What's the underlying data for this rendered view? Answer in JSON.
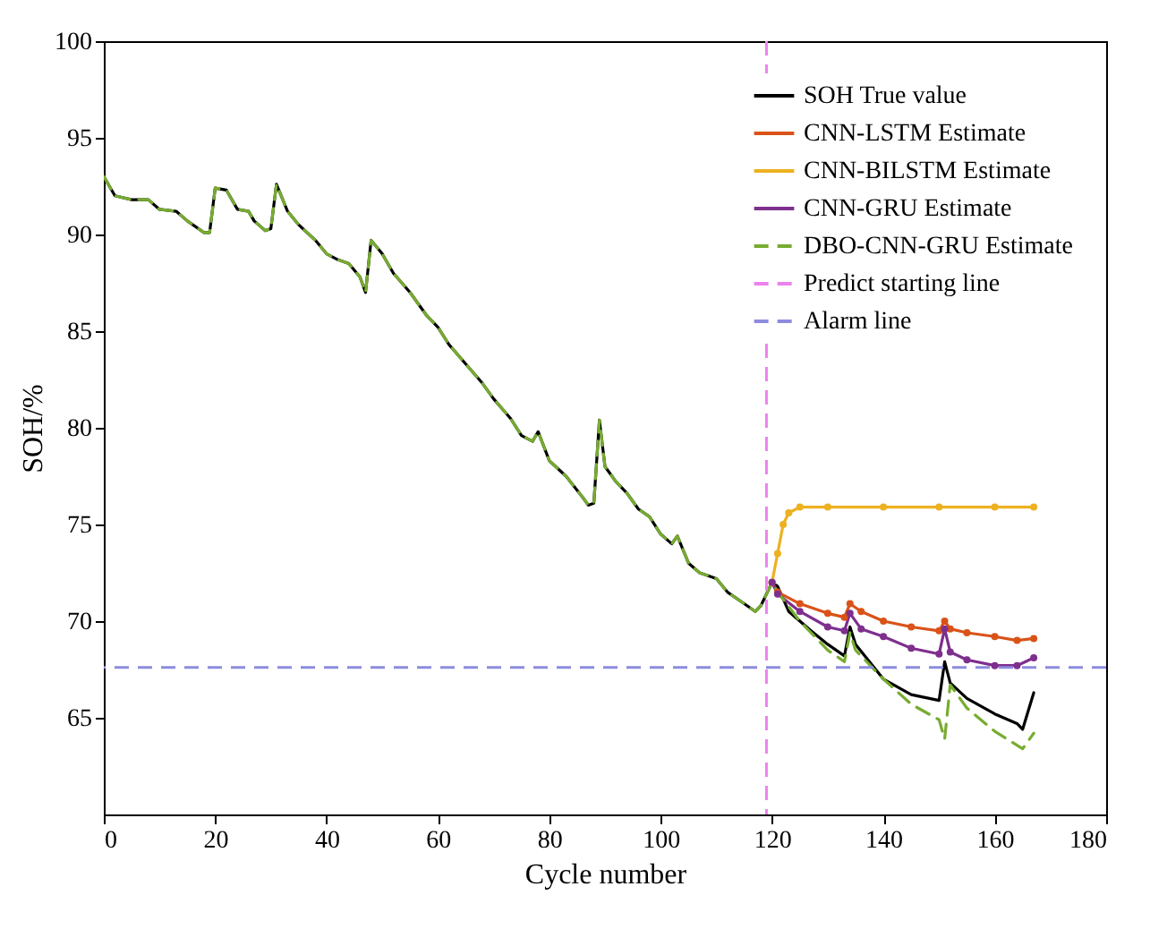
{
  "chart_data": {
    "type": "line",
    "xlabel": "Cycle number",
    "ylabel": "SOH/%",
    "xlim": [
      0,
      180
    ],
    "xticks": [
      0,
      20,
      40,
      60,
      80,
      100,
      120,
      140,
      160,
      180
    ],
    "ylim": [
      60,
      100
    ],
    "yticks": [
      65,
      70,
      75,
      80,
      85,
      90,
      95,
      100
    ],
    "grid": false,
    "legend": "top right",
    "series": [
      {
        "name": "SOH True value",
        "color": "#000000",
        "line_style": "solid",
        "x": [
          0,
          2,
          5,
          8,
          10,
          13,
          15,
          18,
          19,
          20,
          22,
          24,
          26,
          27,
          29,
          30,
          31,
          33,
          35,
          38,
          40,
          42,
          44,
          46,
          47,
          48,
          50,
          52,
          55,
          58,
          60,
          62,
          65,
          68,
          70,
          73,
          75,
          77,
          78,
          80,
          83,
          86,
          87,
          88,
          89,
          90,
          92,
          94,
          96,
          98,
          100,
          102,
          103,
          105,
          107,
          110,
          112,
          115,
          117,
          118,
          120,
          121,
          123,
          127,
          130,
          133,
          134,
          135,
          140,
          145,
          150,
          151,
          152,
          155,
          160,
          164,
          165,
          167
        ],
        "values": [
          93,
          92,
          91.8,
          91.8,
          91.3,
          91.2,
          90.7,
          90.1,
          90.1,
          92.4,
          92.3,
          91.3,
          91.2,
          90.7,
          90.2,
          90.3,
          92.6,
          91.2,
          90.5,
          89.7,
          89,
          88.7,
          88.5,
          87.8,
          87,
          89.7,
          89,
          88,
          87,
          85.8,
          85.2,
          84.3,
          83.3,
          82.3,
          81.5,
          80.5,
          79.6,
          79.3,
          79.8,
          78.3,
          77.5,
          76.4,
          76,
          76.1,
          80.4,
          78,
          77.2,
          76.6,
          75.8,
          75.4,
          74.5,
          74,
          74.4,
          73,
          72.5,
          72.2,
          71.5,
          70.9,
          70.5,
          70.8,
          72,
          71.8,
          70.5,
          69.5,
          68.8,
          68.2,
          69.7,
          68.8,
          67,
          66.2,
          65.9,
          67.9,
          66.8,
          66,
          65.2,
          64.7,
          64.4,
          66.3
        ]
      },
      {
        "name": "CNN-LSTM Estimate",
        "color": "#d95319",
        "line_style": "solid",
        "marker": "circle",
        "x": [
          120,
          121,
          125,
          130,
          133,
          134,
          136,
          140,
          145,
          150,
          151,
          152,
          155,
          160,
          164,
          167
        ],
        "values": [
          72,
          71.5,
          70.9,
          70.4,
          70.2,
          70.9,
          70.5,
          70,
          69.7,
          69.5,
          70,
          69.6,
          69.4,
          69.2,
          69,
          69.1
        ]
      },
      {
        "name": "CNN-BILSTM Estimate",
        "color": "#edb120",
        "line_style": "solid",
        "marker": "circle",
        "x": [
          120,
          121,
          122,
          123,
          125,
          130,
          140,
          150,
          160,
          167
        ],
        "values": [
          72,
          73.5,
          75,
          75.6,
          75.9,
          75.9,
          75.9,
          75.9,
          75.9,
          75.9
        ]
      },
      {
        "name": "CNN-GRU Estimate",
        "color": "#7e2f8e",
        "line_style": "solid",
        "marker": "circle",
        "x": [
          120,
          121,
          125,
          130,
          133,
          134,
          136,
          140,
          145,
          150,
          151,
          152,
          155,
          160,
          164,
          167
        ],
        "values": [
          72,
          71.4,
          70.5,
          69.7,
          69.5,
          70.4,
          69.6,
          69.2,
          68.6,
          68.3,
          69.6,
          68.4,
          68,
          67.7,
          67.7,
          68.1
        ]
      },
      {
        "name": "DBO-CNN-GRU Estimate",
        "color": "#77ac30",
        "line_style": "dashed",
        "x": [
          0,
          2,
          5,
          8,
          10,
          13,
          15,
          18,
          19,
          20,
          22,
          24,
          26,
          27,
          29,
          30,
          31,
          33,
          35,
          38,
          40,
          42,
          44,
          46,
          47,
          48,
          50,
          52,
          55,
          58,
          60,
          62,
          65,
          68,
          70,
          73,
          75,
          77,
          78,
          80,
          83,
          86,
          87,
          88,
          89,
          90,
          92,
          94,
          96,
          98,
          100,
          102,
          103,
          105,
          107,
          110,
          112,
          115,
          117,
          118,
          120,
          121,
          125,
          130,
          133,
          134,
          135,
          140,
          145,
          150,
          151,
          152,
          155,
          160,
          165,
          167
        ],
        "values": [
          93,
          92,
          91.8,
          91.8,
          91.3,
          91.2,
          90.7,
          90.1,
          90.1,
          92.4,
          92.3,
          91.3,
          91.2,
          90.7,
          90.2,
          90.3,
          92.6,
          91.2,
          90.5,
          89.7,
          89,
          88.7,
          88.5,
          87.8,
          87,
          89.7,
          89,
          88,
          87,
          85.8,
          85.2,
          84.3,
          83.3,
          82.3,
          81.5,
          80.5,
          79.6,
          79.3,
          79.8,
          78.3,
          77.5,
          76.4,
          76,
          76.1,
          80.4,
          78,
          77.2,
          76.6,
          75.8,
          75.4,
          74.5,
          74,
          74.4,
          73,
          72.5,
          72.2,
          71.5,
          70.9,
          70.5,
          70.8,
          72,
          71.5,
          70,
          68.5,
          67.9,
          69.4,
          68.5,
          67,
          65.7,
          64.9,
          63.9,
          66.7,
          65.5,
          64.3,
          63.4,
          64.2
        ]
      }
    ],
    "ref_lines": [
      {
        "axis": "x",
        "value": 119,
        "label": "Predict starting line",
        "color": "#ee82ee",
        "line_style": "dashed"
      },
      {
        "axis": "y",
        "value": 67.6,
        "label": "Alarm line",
        "color": "#8c8ce0",
        "line_style": "dashed"
      }
    ]
  }
}
